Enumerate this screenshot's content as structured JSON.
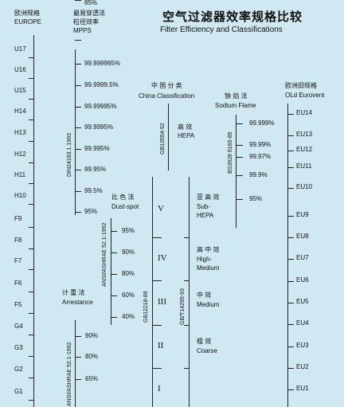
{
  "title": {
    "cn": "空气过滤器效率规格比较",
    "en": "Filter Efficiency and Classifications"
  },
  "europe": {
    "label_cn": "欧洲规格",
    "label_en": "EUROPE",
    "grades": [
      "U17",
      "U16",
      "U15",
      "H14",
      "H13",
      "H12",
      "H11",
      "H10",
      "F9",
      "F8",
      "F7",
      "F6",
      "F5",
      "G4",
      "G3",
      "G2",
      "G1"
    ]
  },
  "mpps": {
    "label_cn": "最易穿透法",
    "label_cn2": "粒径效率",
    "label_en": "MPPS",
    "standard": "DIN24183.1.1993",
    "values": [
      "99.999995%",
      "99.9999.5%",
      "99.99995%",
      "99.9995%",
      "99.995%",
      "99.95%",
      "99.5%",
      "95%",
      "85%"
    ]
  },
  "dustspot": {
    "label_cn": "比 色 法",
    "label_en": "Dust-spot",
    "standard": "ANSI/ASHRAE 52.1-1992",
    "values": [
      "95%",
      "90%",
      "80%",
      "60%",
      "40%"
    ]
  },
  "arrestance": {
    "label_cn": "计 重 法",
    "label_en": "Arrestance",
    "standard": "ANSI/ASHRAE 52.1-1992",
    "values": [
      "90%",
      "80%",
      "65%"
    ]
  },
  "china": {
    "label_cn": "中 国 分 类",
    "label_en": "China Classification",
    "standard_hepa": "GB13554-92",
    "hepa_cn": "高 效",
    "hepa_en": "HEPA",
    "standard_gb": "GB12218-89",
    "roman": [
      "V",
      "IV",
      "III",
      "II",
      "I"
    ],
    "standard_mid": "GB/T14295-93",
    "subhepa_cn": "亚 高 效",
    "subhepa_en1": "Sub-",
    "subhepa_en2": "HEPA",
    "highmed_cn": "高 中 效",
    "highmed_en1": "High-",
    "highmed_en2": "Medium",
    "medium_cn": "中 效",
    "medium_en": "Medium",
    "coarse_cn": "粗 效",
    "coarse_en": "Coarse"
  },
  "sodium": {
    "label_cn": "钠 焰 法",
    "label_en": "Sodium Flame",
    "standard": "BS3928  6165-85",
    "values": [
      "99.999%",
      "99.99%",
      "99.97%",
      "99.9%",
      "95%"
    ]
  },
  "eurovent": {
    "label_cn": "欧洲旧规格",
    "label_en": "OLd Eurovent",
    "grades": [
      "EU14",
      "EU13",
      "EU12",
      "EU11",
      "EU10",
      "EU9",
      "EU8",
      "EU7",
      "EU6",
      "EU5",
      "EU4",
      "EU3",
      "EU2",
      "EU1"
    ]
  }
}
